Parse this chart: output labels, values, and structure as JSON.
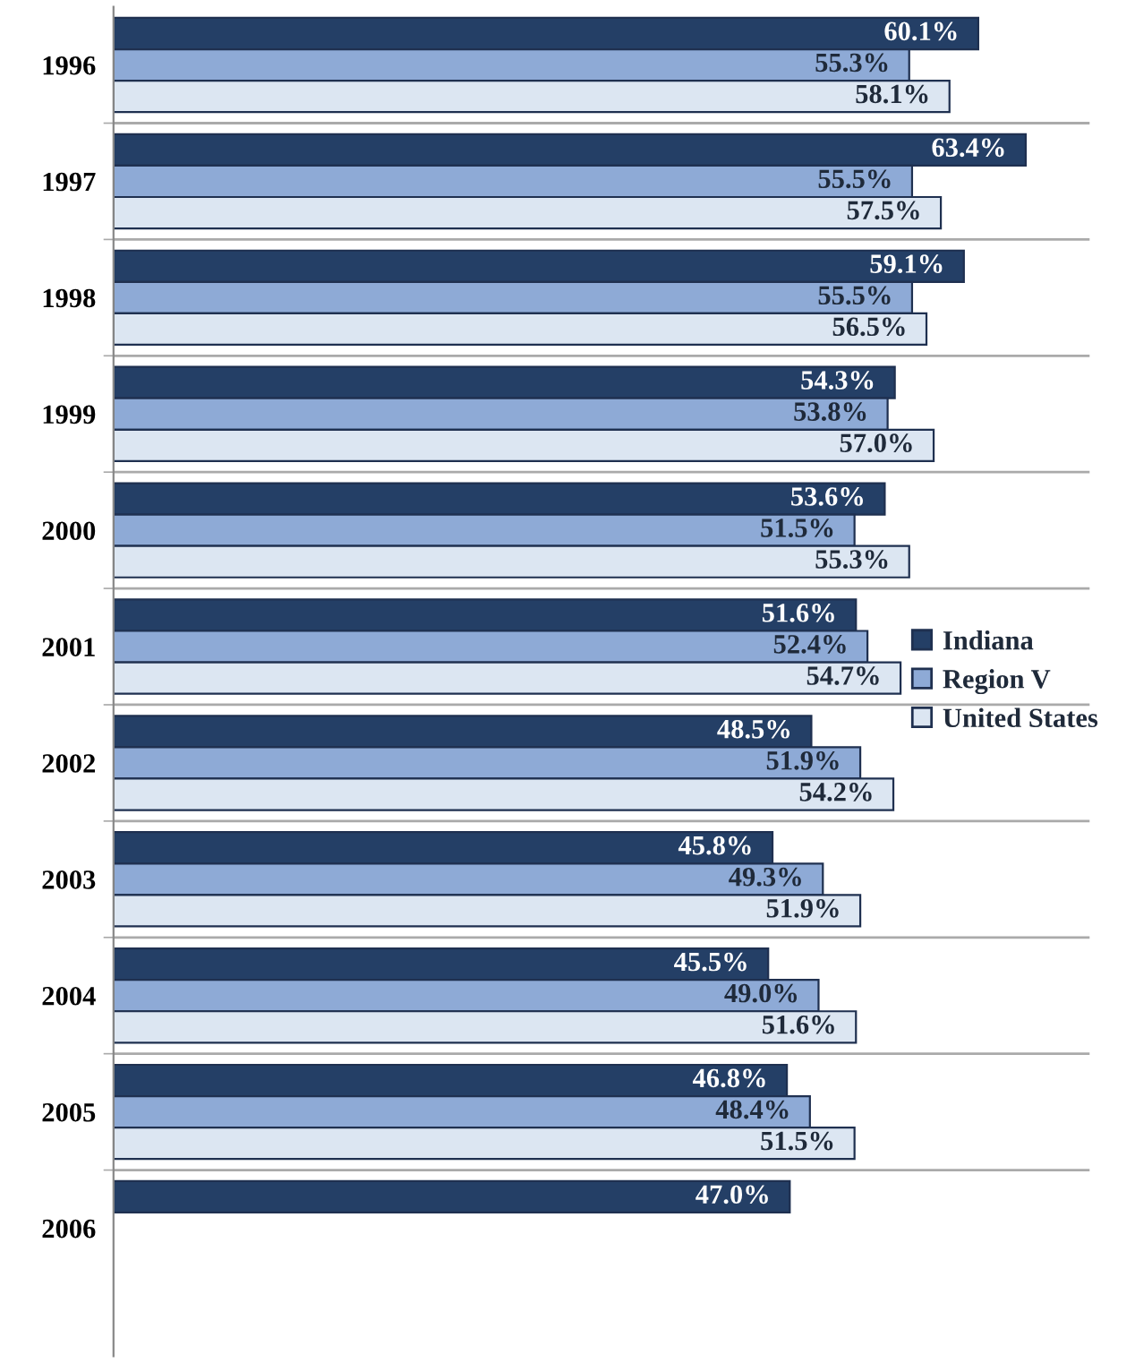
{
  "chart_data": {
    "type": "bar",
    "orientation": "horizontal",
    "categories": [
      "1996",
      "1997",
      "1998",
      "1999",
      "2000",
      "2001",
      "2002",
      "2003",
      "2004",
      "2005",
      "2006"
    ],
    "series": [
      {
        "name": "Indiana",
        "color": "#243f66",
        "values": [
          60.1,
          63.4,
          59.1,
          54.3,
          53.6,
          51.6,
          48.5,
          45.8,
          45.5,
          46.8,
          47.0
        ],
        "value_labels": [
          "60.1%",
          "63.4%",
          "59.1%",
          "54.3%",
          "53.6%",
          "51.6%",
          "48.5%",
          "45.8%",
          "45.5%",
          "46.8%",
          "47.0%"
        ]
      },
      {
        "name": "Region V",
        "color": "#8eaad6",
        "values": [
          55.3,
          55.5,
          55.5,
          53.8,
          51.5,
          52.4,
          51.9,
          49.3,
          49.0,
          48.4,
          null
        ],
        "value_labels": [
          "55.3%",
          "55.5%",
          "55.5%",
          "53.8%",
          "51.5%",
          "52.4%",
          "51.9%",
          "49.3%",
          "49.0%",
          "48.4%",
          null
        ]
      },
      {
        "name": "United States",
        "color": "#dce6f2",
        "values": [
          58.1,
          57.5,
          56.5,
          57.0,
          55.3,
          54.7,
          54.2,
          51.9,
          51.6,
          51.5,
          null
        ],
        "value_labels": [
          "58.1%",
          "57.5%",
          "56.5%",
          "57.0%",
          "55.3%",
          "54.7%",
          "54.2%",
          "51.9%",
          "51.6%",
          "51.5%",
          null
        ]
      }
    ],
    "legend": "right",
    "grid": "y",
    "tick_labels": "y"
  }
}
